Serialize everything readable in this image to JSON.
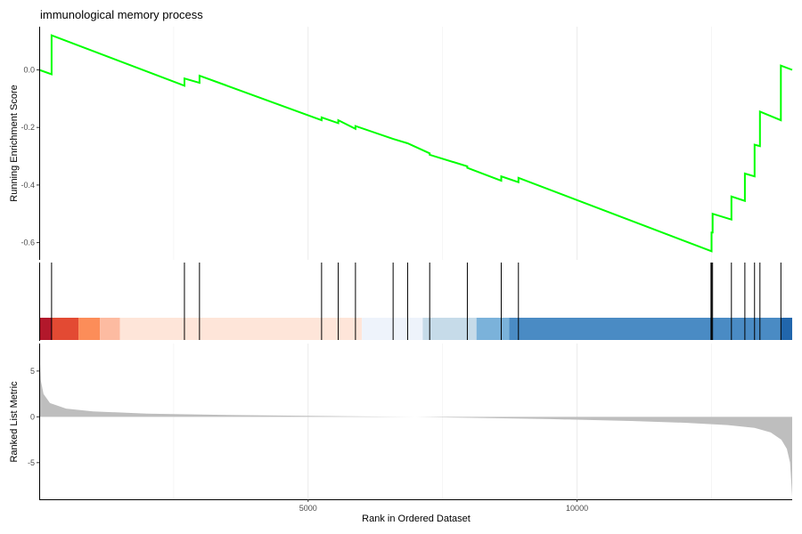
{
  "chart_data": {
    "type": "line",
    "title": "immunological memory process",
    "xlabel": "Rank in Ordered Dataset",
    "x_ticks": [
      5000,
      10000
    ],
    "xlim": [
      0,
      14000
    ],
    "es_panel": {
      "ylabel": "Running Enrichment Score",
      "ylim": [
        -0.66,
        0.15
      ],
      "y_ticks": [
        0.0,
        -0.2,
        -0.4,
        -0.6
      ],
      "line_color": "#00ff00",
      "points": [
        [
          0,
          0.0
        ],
        [
          230,
          -0.015
        ],
        [
          230,
          0.12
        ],
        [
          2700,
          -0.055
        ],
        [
          2700,
          -0.03
        ],
        [
          2980,
          -0.045
        ],
        [
          2980,
          -0.02
        ],
        [
          5250,
          -0.175
        ],
        [
          5250,
          -0.165
        ],
        [
          5560,
          -0.185
        ],
        [
          5560,
          -0.175
        ],
        [
          5880,
          -0.205
        ],
        [
          5880,
          -0.195
        ],
        [
          6580,
          -0.24
        ],
        [
          6850,
          -0.255
        ],
        [
          7260,
          -0.29
        ],
        [
          7260,
          -0.295
        ],
        [
          7960,
          -0.335
        ],
        [
          7960,
          -0.34
        ],
        [
          8590,
          -0.385
        ],
        [
          8590,
          -0.37
        ],
        [
          8910,
          -0.39
        ],
        [
          8910,
          -0.375
        ],
        [
          12500,
          -0.63
        ],
        [
          12500,
          -0.565
        ],
        [
          12520,
          -0.565
        ],
        [
          12520,
          -0.5
        ],
        [
          12870,
          -0.52
        ],
        [
          12870,
          -0.44
        ],
        [
          13120,
          -0.455
        ],
        [
          13120,
          -0.36
        ],
        [
          13300,
          -0.37
        ],
        [
          13300,
          -0.26
        ],
        [
          13400,
          -0.265
        ],
        [
          13400,
          -0.145
        ],
        [
          13790,
          -0.175
        ],
        [
          13790,
          0.015
        ],
        [
          14000,
          0.0
        ]
      ]
    },
    "hits": [
      230,
      2700,
      2980,
      5250,
      5560,
      5880,
      6580,
      6850,
      7260,
      7960,
      8590,
      8910,
      12490,
      12500,
      12520,
      12870,
      13120,
      13300,
      13400,
      13790
    ],
    "color_bands": [
      {
        "from": 0,
        "to": 230,
        "color": "#b2182b"
      },
      {
        "from": 230,
        "to": 730,
        "color": "#e34a33"
      },
      {
        "from": 730,
        "to": 1130,
        "color": "#fc8d59"
      },
      {
        "from": 1130,
        "to": 1500,
        "color": "#fdbba1"
      },
      {
        "from": 1500,
        "to": 6000,
        "color": "#fee5d9"
      },
      {
        "from": 6000,
        "to": 7130,
        "color": "#eef3fb"
      },
      {
        "from": 7130,
        "to": 8130,
        "color": "#c6dbe9"
      },
      {
        "from": 8130,
        "to": 8740,
        "color": "#7bb2da"
      },
      {
        "from": 8740,
        "to": 13780,
        "color": "#4a8bc4"
      },
      {
        "from": 13780,
        "to": 14000,
        "color": "#2166ac"
      }
    ],
    "metric_panel": {
      "ylabel": "Ranked List Metric",
      "ylim": [
        -9,
        8
      ],
      "y_ticks": [
        5,
        0,
        -5
      ],
      "fill_color": "#bebebe",
      "points": [
        [
          0,
          8
        ],
        [
          30,
          4
        ],
        [
          80,
          2.5
        ],
        [
          200,
          1.5
        ],
        [
          500,
          0.9
        ],
        [
          1000,
          0.6
        ],
        [
          2000,
          0.35
        ],
        [
          3500,
          0.2
        ],
        [
          5000,
          0.1
        ],
        [
          6500,
          0.02
        ],
        [
          7000,
          0
        ],
        [
          8000,
          -0.1
        ],
        [
          9500,
          -0.25
        ],
        [
          11000,
          -0.45
        ],
        [
          12000,
          -0.65
        ],
        [
          12800,
          -0.9
        ],
        [
          13300,
          -1.2
        ],
        [
          13600,
          -1.7
        ],
        [
          13800,
          -2.5
        ],
        [
          13900,
          -3.5
        ],
        [
          13960,
          -5
        ],
        [
          14000,
          -8.8
        ]
      ]
    }
  }
}
